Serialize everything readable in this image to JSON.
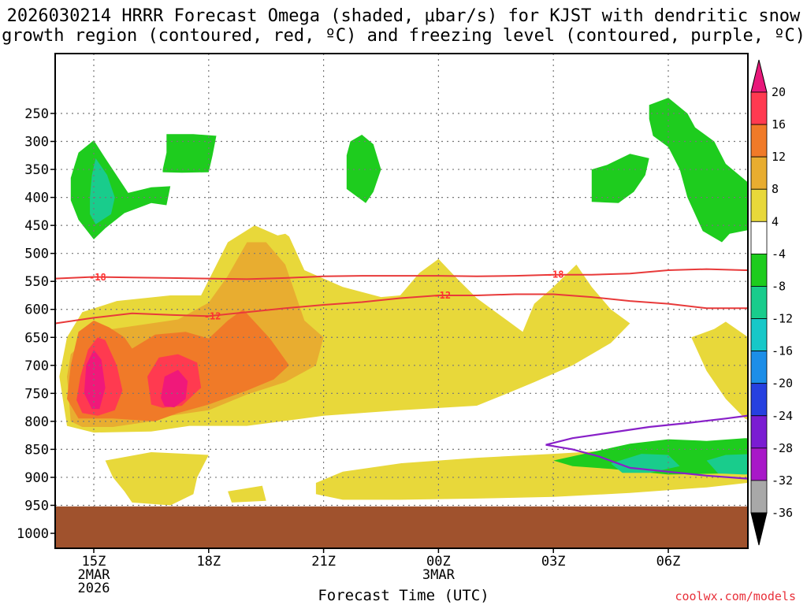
{
  "title": "2026030214 HRRR Forecast Omega (shaded, μbar/s) for KJST with dendritic snow\ngrowth region (contoured, red, ºC) and freezing level (contoured, purple, ºC)",
  "credit": "coolwx.com/models",
  "chart_data": {
    "type": "area",
    "title": "2026030214 HRRR Forecast Omega (shaded, μbar/s) for KJST with dendritic snow growth region (contoured, red, ºC) and freezing level (contoured, purple, ºC)",
    "xlabel": "Forecast Time (UTC)",
    "ylabel": "",
    "x_range_hours": [
      -1,
      17.7
    ],
    "x_ticks": [
      {
        "h": 0,
        "lines": [
          "15Z",
          "2MAR",
          "2026"
        ]
      },
      {
        "h": 3,
        "lines": [
          "18Z"
        ]
      },
      {
        "h": 6,
        "lines": [
          "21Z"
        ]
      },
      {
        "h": 9,
        "lines": [
          "00Z",
          "3MAR"
        ]
      },
      {
        "h": 12,
        "lines": [
          "03Z"
        ]
      },
      {
        "h": 15,
        "lines": [
          "06Z"
        ]
      }
    ],
    "y_range_hpa": [
      200,
      1040
    ],
    "y_ticks": [
      250,
      300,
      350,
      400,
      450,
      500,
      550,
      600,
      650,
      700,
      750,
      800,
      850,
      900,
      950,
      1000
    ],
    "grid": true,
    "terrain_surface_hpa": 952,
    "colorbar": {
      "levels": [
        20,
        16,
        12,
        8,
        4,
        -4,
        -8,
        -12,
        -16,
        -20,
        -24,
        -28,
        -32,
        -36
      ],
      "colors": [
        "#ff3a50",
        "#f07a28",
        "#e8ad30",
        "#e8d83a",
        "#ffffff",
        "#1ecc1e",
        "#19cc8c",
        "#17c8c8",
        "#1c8ee8",
        "#2640e0",
        "#7a1cd2",
        "#a818c8",
        "#a8a8a8"
      ],
      "top_arrow_color": "#e8187a",
      "bottom_arrow_color": "#000000"
    },
    "omega_regions": [
      {
        "level": 4,
        "pts": [
          [
            -0.9,
            720
          ],
          [
            -0.7,
            650
          ],
          [
            -0.3,
            605
          ],
          [
            0.6,
            585
          ],
          [
            2,
            575
          ],
          [
            2.8,
            575
          ],
          [
            3.5,
            480
          ],
          [
            4.2,
            450
          ],
          [
            4.8,
            468
          ],
          [
            5,
            465
          ],
          [
            5.1,
            470
          ],
          [
            5.5,
            530
          ],
          [
            6.5,
            560
          ],
          [
            7.5,
            578
          ],
          [
            8,
            575
          ],
          [
            8.5,
            535
          ],
          [
            9,
            510
          ],
          [
            9.5,
            546
          ],
          [
            10,
            580
          ],
          [
            10.9,
            625
          ],
          [
            11.2,
            640
          ],
          [
            11.5,
            590
          ],
          [
            12,
            560
          ],
          [
            12.6,
            520
          ],
          [
            13,
            560
          ],
          [
            13.5,
            600
          ],
          [
            14,
            625
          ],
          [
            13.5,
            660
          ],
          [
            12.5,
            700
          ],
          [
            11.5,
            730
          ],
          [
            10.8,
            750
          ],
          [
            10,
            772
          ],
          [
            8,
            780
          ],
          [
            6,
            790
          ],
          [
            4,
            808
          ],
          [
            2.5,
            808
          ],
          [
            1.5,
            818
          ],
          [
            0,
            820
          ],
          [
            -0.7,
            808
          ]
        ],
        "note": "main positive (upward) band"
      },
      {
        "level": 4,
        "pts": [
          [
            0.3,
            870
          ],
          [
            1.5,
            855
          ],
          [
            3,
            860
          ],
          [
            2.7,
            900
          ],
          [
            2.6,
            930
          ],
          [
            2,
            950
          ],
          [
            1,
            945
          ],
          [
            0.8,
            925
          ],
          [
            0.5,
            900
          ]
        ]
      },
      {
        "level": 4,
        "pts": [
          [
            3.5,
            925
          ],
          [
            4.4,
            915
          ],
          [
            4.5,
            942
          ],
          [
            3.6,
            945
          ]
        ]
      },
      {
        "level": 4,
        "pts": [
          [
            5.8,
            910
          ],
          [
            6.5,
            890
          ],
          [
            8,
            875
          ],
          [
            10,
            865
          ],
          [
            12,
            858
          ],
          [
            14,
            850
          ],
          [
            16,
            840
          ],
          [
            17.3,
            835
          ],
          [
            17.7,
            840
          ],
          [
            17.7,
            905
          ],
          [
            16,
            918
          ],
          [
            14,
            928
          ],
          [
            12,
            935
          ],
          [
            10,
            938
          ],
          [
            8,
            940
          ],
          [
            6.5,
            940
          ],
          [
            5.8,
            930
          ]
        ]
      },
      {
        "level": 4,
        "pts": [
          [
            15.6,
            650
          ],
          [
            16.2,
            635
          ],
          [
            16.5,
            622
          ],
          [
            17.3,
            660
          ],
          [
            17.7,
            730
          ],
          [
            17.7,
            815
          ],
          [
            17,
            795
          ],
          [
            16.5,
            760
          ],
          [
            16,
            710
          ]
        ]
      },
      {
        "level": 8,
        "pts": [
          [
            -0.6,
            800
          ],
          [
            -0.7,
            720
          ],
          [
            -0.6,
            680
          ],
          [
            0,
            640
          ],
          [
            1.5,
            625
          ],
          [
            2.2,
            618
          ],
          [
            3,
            588
          ],
          [
            3.5,
            540
          ],
          [
            4,
            480
          ],
          [
            4.5,
            480
          ],
          [
            5,
            520
          ],
          [
            5.5,
            620
          ],
          [
            6,
            650
          ],
          [
            5.8,
            700
          ],
          [
            5,
            730
          ],
          [
            4,
            752
          ],
          [
            3,
            780
          ],
          [
            2,
            790
          ],
          [
            1.5,
            800
          ],
          [
            0.5,
            810
          ],
          [
            -0.3,
            810
          ]
        ]
      },
      {
        "level": 12,
        "pts": [
          [
            -0.7,
            760
          ],
          [
            -0.6,
            700
          ],
          [
            -0.4,
            640
          ],
          [
            0,
            620
          ],
          [
            0.4,
            632
          ],
          [
            0.8,
            650
          ],
          [
            1,
            670
          ],
          [
            1.6,
            645
          ],
          [
            2.4,
            640
          ],
          [
            3,
            652
          ],
          [
            3.5,
            620
          ],
          [
            3.9,
            600
          ],
          [
            4.6,
            652
          ],
          [
            5.1,
            700
          ],
          [
            4.7,
            725
          ],
          [
            4,
            745
          ],
          [
            3,
            770
          ],
          [
            2.2,
            785
          ],
          [
            1.6,
            800
          ],
          [
            0.5,
            795
          ],
          [
            -0.4,
            795
          ]
        ]
      },
      {
        "level": 16,
        "pts": [
          [
            -0.45,
            762
          ],
          [
            -0.35,
            720
          ],
          [
            -0.15,
            672
          ],
          [
            0.1,
            650
          ],
          [
            0.3,
            655
          ],
          [
            0.6,
            700
          ],
          [
            0.75,
            745
          ],
          [
            0.55,
            780
          ],
          [
            0.1,
            790
          ],
          [
            -0.3,
            785
          ]
        ]
      },
      {
        "level": 16,
        "pts": [
          [
            1.5,
            770
          ],
          [
            1.4,
            720
          ],
          [
            1.7,
            686
          ],
          [
            2.2,
            680
          ],
          [
            2.7,
            695
          ],
          [
            2.8,
            740
          ],
          [
            2.3,
            772
          ],
          [
            1.8,
            776
          ]
        ]
      },
      {
        "level": 20,
        "pts": [
          [
            -0.25,
            750
          ],
          [
            -0.2,
            700
          ],
          [
            0,
            672
          ],
          [
            0.2,
            690
          ],
          [
            0.3,
            740
          ],
          [
            0.15,
            778
          ],
          [
            -0.05,
            778
          ]
        ]
      },
      {
        "level": 20,
        "pts": [
          [
            1.75,
            758
          ],
          [
            1.85,
            720
          ],
          [
            2.2,
            708
          ],
          [
            2.45,
            728
          ],
          [
            2.4,
            760
          ],
          [
            2.1,
            775
          ],
          [
            1.85,
            773
          ]
        ]
      },
      {
        "level": -4,
        "pts": [
          [
            -0.6,
            365
          ],
          [
            -0.4,
            320
          ],
          [
            0,
            298
          ],
          [
            0.3,
            330
          ],
          [
            0.9,
            392
          ],
          [
            1.5,
            382
          ],
          [
            2,
            380
          ],
          [
            1.9,
            414
          ],
          [
            1.5,
            410
          ],
          [
            0.8,
            428
          ],
          [
            0.3,
            455
          ],
          [
            0,
            475
          ],
          [
            -0.4,
            440
          ],
          [
            -0.6,
            405
          ]
        ]
      },
      {
        "level": -4,
        "pts": [
          [
            1.8,
            350
          ],
          [
            1.9,
            320
          ],
          [
            1.9,
            287
          ],
          [
            2.6,
            287
          ],
          [
            3.2,
            290
          ],
          [
            3.1,
            325
          ],
          [
            3,
            355
          ],
          [
            2.3,
            356
          ],
          [
            1.8,
            355
          ]
        ]
      },
      {
        "level": -4,
        "pts": [
          [
            6.6,
            375
          ],
          [
            6.6,
            325
          ],
          [
            6.7,
            300
          ],
          [
            7,
            288
          ],
          [
            7.3,
            305
          ],
          [
            7.5,
            350
          ],
          [
            7.3,
            390
          ],
          [
            7.1,
            410
          ],
          [
            6.9,
            400
          ],
          [
            6.6,
            385
          ]
        ]
      },
      {
        "level": -4,
        "pts": [
          [
            13,
            400
          ],
          [
            13,
            350
          ],
          [
            13.4,
            342
          ],
          [
            14,
            322
          ],
          [
            14.5,
            330
          ],
          [
            14.4,
            360
          ],
          [
            14.1,
            390
          ],
          [
            13.7,
            410
          ],
          [
            13,
            408
          ]
        ]
      },
      {
        "level": -4,
        "pts": [
          [
            14.5,
            235
          ],
          [
            15,
            222
          ],
          [
            15.5,
            250
          ],
          [
            15.7,
            275
          ],
          [
            16.2,
            300
          ],
          [
            16.5,
            340
          ],
          [
            17.2,
            380
          ],
          [
            17.7,
            395
          ],
          [
            17.7,
            450
          ],
          [
            16.6,
            465
          ],
          [
            16.4,
            480
          ],
          [
            15.9,
            460
          ],
          [
            15.5,
            400
          ],
          [
            15.3,
            350
          ],
          [
            15,
            310
          ],
          [
            14.6,
            290
          ],
          [
            14.5,
            260
          ]
        ]
      },
      {
        "level": -4,
        "pts": [
          [
            12,
            870
          ],
          [
            13,
            855
          ],
          [
            14,
            840
          ],
          [
            15,
            832
          ],
          [
            16,
            835
          ],
          [
            17,
            830
          ],
          [
            17.7,
            832
          ],
          [
            17.7,
            880
          ],
          [
            16.5,
            893
          ],
          [
            15,
            895
          ],
          [
            13.5,
            885
          ],
          [
            12.5,
            880
          ]
        ]
      },
      {
        "level": -8,
        "pts": [
          [
            -0.1,
            400
          ],
          [
            -0.05,
            360
          ],
          [
            0.05,
            330
          ],
          [
            0.35,
            360
          ],
          [
            0.55,
            400
          ],
          [
            0.45,
            430
          ],
          [
            0.05,
            448
          ],
          [
            -0.1,
            430
          ]
        ]
      },
      {
        "level": -8,
        "pts": [
          [
            13.5,
            875
          ],
          [
            14.3,
            858
          ],
          [
            15,
            860
          ],
          [
            15.3,
            880
          ],
          [
            14.5,
            892
          ],
          [
            13.8,
            892
          ]
        ]
      },
      {
        "level": -8,
        "pts": [
          [
            16,
            870
          ],
          [
            16.5,
            860
          ],
          [
            17.3,
            858
          ],
          [
            17.7,
            862
          ],
          [
            17.7,
            890
          ],
          [
            17,
            895
          ],
          [
            16.3,
            893
          ]
        ]
      }
    ],
    "dgz_contours": [
      {
        "value": -18,
        "color": "#e83a3a",
        "x": [
          -1,
          0,
          1,
          2,
          3,
          4,
          5,
          6,
          7,
          8,
          9,
          10,
          11,
          12,
          13,
          14,
          15,
          16,
          17,
          17.7
        ],
        "y": [
          545,
          542,
          543,
          544,
          545,
          546,
          544,
          541,
          540,
          540,
          540,
          541,
          540,
          538,
          538,
          536,
          530,
          528,
          530,
          530
        ]
      },
      {
        "value": -12,
        "color": "#e83a3a",
        "x": [
          -1,
          0,
          1,
          2,
          3,
          4,
          5,
          6,
          7,
          8,
          9,
          10,
          11,
          12,
          13,
          14,
          15,
          16,
          17,
          17.7
        ],
        "y": [
          625,
          615,
          607,
          610,
          612,
          605,
          598,
          592,
          587,
          580,
          575,
          575,
          573,
          573,
          578,
          585,
          590,
          598,
          598,
          598
        ]
      }
    ],
    "dgz_labels": [
      {
        "text": "-18",
        "x": 0.1,
        "y": 543
      },
      {
        "text": "-12",
        "x": 3.1,
        "y": 612
      },
      {
        "text": "-18",
        "x": 12.05,
        "y": 538
      },
      {
        "text": "-12",
        "x": 9.1,
        "y": 575
      }
    ],
    "freezing_contours": [
      {
        "value": 0,
        "color": "#8820c8",
        "x": [
          11.8,
          12.5,
          13.5,
          14.5,
          15.5,
          16.5,
          17.5,
          17.7
        ],
        "y": [
          842,
          830,
          820,
          810,
          803,
          795,
          786,
          786
        ]
      },
      {
        "value": 0,
        "color": "#8820c8",
        "x": [
          11.8,
          12.5,
          13.2,
          14,
          15,
          16,
          17,
          17.7
        ],
        "y": [
          842,
          850,
          863,
          883,
          890,
          897,
          902,
          903
        ]
      }
    ]
  }
}
